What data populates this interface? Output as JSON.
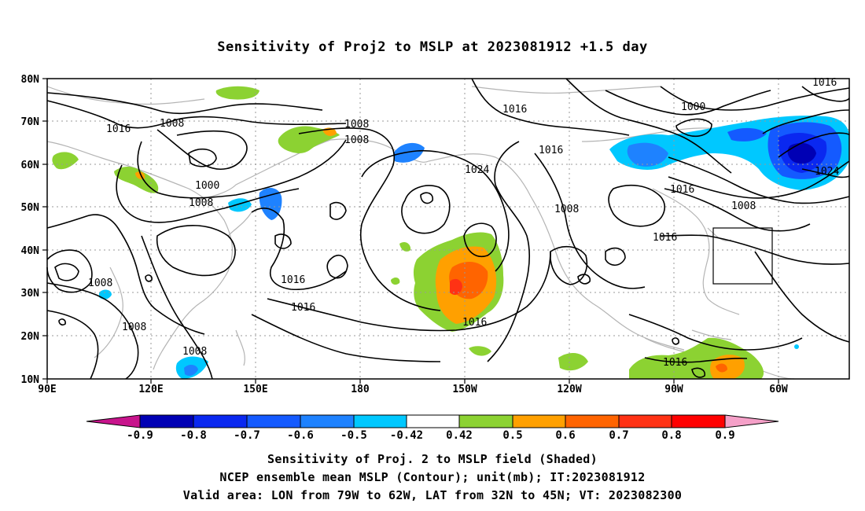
{
  "title": "Sensitivity of Proj2 to MSLP at 2023081912 +1.5 day",
  "map": {
    "lon_ticks": [
      "90E",
      "120E",
      "150E",
      "180",
      "150W",
      "120W",
      "90W",
      "60W"
    ],
    "lat_ticks": [
      "80N",
      "70N",
      "60N",
      "50N",
      "40N",
      "30N",
      "20N",
      "10N"
    ],
    "contour_labels": [
      "1016",
      "1008",
      "1008",
      "1008",
      "1016",
      "1024",
      "1016",
      "1000",
      "1016",
      "1000",
      "1008",
      "1008",
      "1016",
      "1016",
      "1008",
      "1016",
      "1016",
      "1024",
      "1008",
      "1016",
      "1008",
      "1008"
    ],
    "valid_box": {
      "lon_west": "79W",
      "lon_east": "62W",
      "lat_south": "32N",
      "lat_north": "45N"
    }
  },
  "colorbar": {
    "labels": [
      "-0.9",
      "-0.8",
      "-0.7",
      "-0.6",
      "-0.5",
      "-0.42",
      "0.42",
      "0.5",
      "0.6",
      "0.7",
      "0.8",
      "0.9"
    ],
    "colors": [
      "#c8148c",
      "#0000b4",
      "#0a28f0",
      "#145aff",
      "#1e82ff",
      "#00c8ff",
      "#ffffff",
      "#8cd232",
      "#ffa000",
      "#ff6400",
      "#ff3214",
      "#ff0000",
      "#f5a0c8"
    ]
  },
  "captions": [
    "Sensitivity of Proj. 2 to MSLP field (Shaded)",
    "NCEP ensemble mean MSLP (Contour); unit(mb); IT:2023081912",
    "Valid area: LON from 79W to 62W, LAT from 32N to 45N; VT: 2023082300"
  ]
}
